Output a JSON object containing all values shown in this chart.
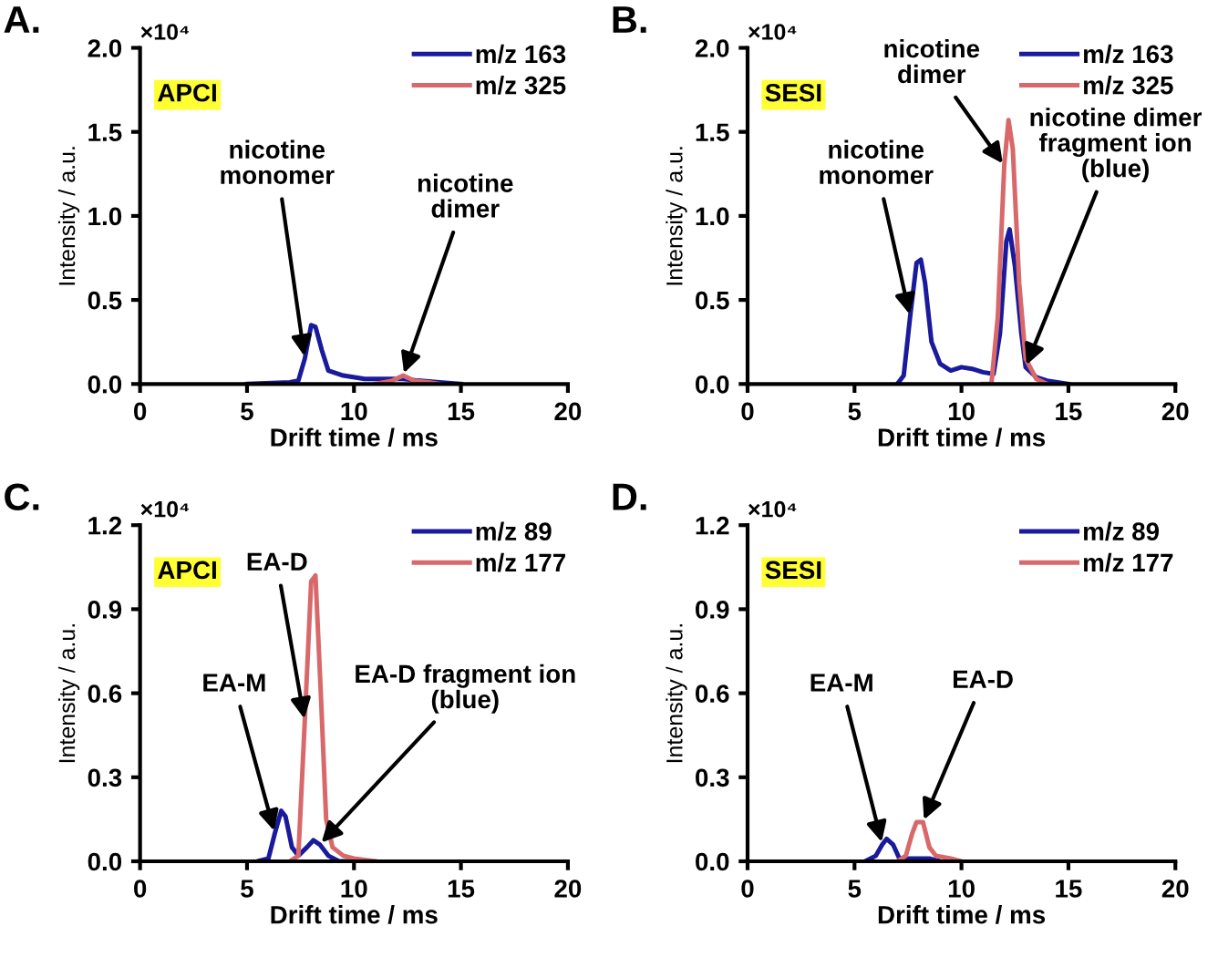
{
  "chart_data": [
    {
      "type": "line",
      "title": "A.",
      "xlabel": "Drift time / ms",
      "ylabel": "Intensity / a.u.",
      "xlim": [
        0,
        20
      ],
      "xticks": [
        0,
        5,
        10,
        15,
        20
      ],
      "ylim": [
        0,
        2.0
      ],
      "yticks": [
        {
          "value": 0,
          "label": "0.0"
        },
        {
          "value": 0.5,
          "label": "0.5"
        },
        {
          "value": 1.0,
          "label": "1.0"
        },
        {
          "value": 1.5,
          "label": "1.5"
        },
        {
          "value": 2.0,
          "label": "2.0"
        }
      ],
      "legend": "top right",
      "grid": false,
      "series": [
        {
          "name": "m/z 163",
          "color": "#1a1a9c",
          "x": [
            5,
            7,
            7.4,
            7.7,
            8.0,
            8.2,
            8.5,
            8.8,
            9.5,
            10.5,
            11.5,
            12.3,
            13,
            14,
            15
          ],
          "values": [
            0,
            0.01,
            0.02,
            0.15,
            0.35,
            0.34,
            0.2,
            0.08,
            0.05,
            0.03,
            0.03,
            0.03,
            0.02,
            0.01,
            0
          ]
        },
        {
          "name": "m/z 325",
          "color": "#d9686a",
          "x": [
            11,
            11.8,
            12.3,
            12.8,
            13.5,
            14
          ],
          "values": [
            0,
            0.02,
            0.05,
            0.02,
            0.01,
            0
          ]
        }
      ],
      "annotations": [
        "×10⁴",
        "APCI",
        {
          "text": "nicotine\nmonomer",
          "x": 7.7,
          "y": 0.15
        },
        {
          "text": "nicotine\ndimer",
          "x": 12.3,
          "y": 0.05
        }
      ]
    },
    {
      "type": "line",
      "title": "B.",
      "xlabel": "Drift time / ms",
      "ylabel": "Intensity / a.u.",
      "xlim": [
        0,
        20
      ],
      "xticks": [
        0,
        5,
        10,
        15,
        20
      ],
      "ylim": [
        0,
        2.0
      ],
      "yticks": [
        {
          "value": 0,
          "label": "0.0"
        },
        {
          "value": 0.5,
          "label": "0.5"
        },
        {
          "value": 1.0,
          "label": "1.0"
        },
        {
          "value": 1.5,
          "label": "1.5"
        },
        {
          "value": 2.0,
          "label": "2.0"
        }
      ],
      "legend": "top right",
      "grid": false,
      "series": [
        {
          "name": "m/z 163",
          "color": "#1a1a9c",
          "x": [
            7,
            7.3,
            7.6,
            7.9,
            8.1,
            8.3,
            8.6,
            9,
            9.5,
            10,
            10.5,
            11,
            11.5,
            11.8,
            12.1,
            12.25,
            12.5,
            12.8,
            13,
            13.5,
            14,
            15
          ],
          "values": [
            0,
            0.05,
            0.4,
            0.72,
            0.74,
            0.6,
            0.25,
            0.12,
            0.08,
            0.1,
            0.09,
            0.07,
            0.06,
            0.3,
            0.85,
            0.92,
            0.7,
            0.3,
            0.1,
            0.04,
            0.02,
            0
          ]
        },
        {
          "name": "m/z 325",
          "color": "#d9686a",
          "x": [
            11,
            11.4,
            11.7,
            12.0,
            12.2,
            12.4,
            12.7,
            13,
            13.5,
            14
          ],
          "values": [
            0,
            0,
            0.4,
            1.3,
            1.57,
            1.4,
            0.6,
            0.15,
            0.03,
            0
          ]
        }
      ],
      "annotations": [
        "×10⁴",
        "SESI",
        {
          "text": "nicotine\nmonomer",
          "x": 7.6,
          "y": 0.4
        },
        {
          "text": "nicotine\ndimer",
          "x": 12.0,
          "y": 1.3
        },
        {
          "text": "nicotine dimer\nfragment ion\n(blue)",
          "x": 13,
          "y": 0.1
        }
      ]
    },
    {
      "type": "line",
      "title": "C.",
      "xlabel": "Drift time / ms",
      "ylabel": "Intensity / a.u.",
      "xlim": [
        0,
        20
      ],
      "xticks": [
        0,
        5,
        10,
        15,
        20
      ],
      "ylim": [
        0,
        1.2
      ],
      "yticks": [
        {
          "value": 0,
          "label": "0.0"
        },
        {
          "value": 0.3,
          "label": "0.3"
        },
        {
          "value": 0.6,
          "label": "0.6"
        },
        {
          "value": 0.9,
          "label": "0.9"
        },
        {
          "value": 1.2,
          "label": "1.2"
        }
      ],
      "legend": "top right",
      "grid": false,
      "series": [
        {
          "name": "m/z 89",
          "color": "#1a1a9c",
          "x": [
            5.5,
            6,
            6.3,
            6.6,
            6.8,
            7.1,
            7.4,
            7.8,
            8.1,
            8.4,
            8.8,
            9.3,
            10
          ],
          "values": [
            0,
            0.01,
            0.1,
            0.18,
            0.16,
            0.05,
            0.02,
            0.05,
            0.075,
            0.06,
            0.02,
            0,
            0
          ]
        },
        {
          "name": "m/z 177",
          "color": "#d9686a",
          "x": [
            7,
            7.4,
            7.7,
            8.0,
            8.2,
            8.45,
            8.7,
            9,
            9.5,
            10,
            11
          ],
          "values": [
            0,
            0.02,
            0.5,
            1.0,
            1.02,
            0.6,
            0.15,
            0.05,
            0.02,
            0.01,
            0
          ]
        }
      ],
      "annotations": [
        "×10⁴",
        "APCI",
        {
          "text": "EA-D",
          "x": 7.7,
          "y": 0.5
        },
        {
          "text": "EA-M",
          "x": 6.3,
          "y": 0.1
        },
        {
          "text": "EA-D fragment ion\n(blue)",
          "x": 8.4,
          "y": 0.06
        }
      ]
    },
    {
      "type": "line",
      "title": "D.",
      "xlabel": "Drift time / ms",
      "ylabel": "Intensity / a.u.",
      "xlim": [
        0,
        20
      ],
      "xticks": [
        0,
        5,
        10,
        15,
        20
      ],
      "ylim": [
        0,
        1.2
      ],
      "yticks": [
        {
          "value": 0,
          "label": "0.0"
        },
        {
          "value": 0.3,
          "label": "0.3"
        },
        {
          "value": 0.6,
          "label": "0.6"
        },
        {
          "value": 0.9,
          "label": "0.9"
        },
        {
          "value": 1.2,
          "label": "1.2"
        }
      ],
      "legend": "top right",
      "grid": false,
      "series": [
        {
          "name": "m/z 89",
          "color": "#1a1a9c",
          "x": [
            5.5,
            6,
            6.3,
            6.5,
            6.8,
            7.1,
            7.5,
            8,
            8.5,
            9
          ],
          "values": [
            0,
            0.02,
            0.06,
            0.08,
            0.06,
            0.01,
            0.01,
            0.01,
            0.01,
            0
          ]
        },
        {
          "name": "m/z 177",
          "color": "#d9686a",
          "x": [
            7,
            7.4,
            7.7,
            7.9,
            8.2,
            8.5,
            8.8,
            9.5,
            10
          ],
          "values": [
            0,
            0.02,
            0.1,
            0.14,
            0.14,
            0.05,
            0.02,
            0.01,
            0
          ]
        }
      ],
      "annotations": [
        "×10⁴",
        "SESI",
        {
          "text": "EA-M",
          "x": 6.3,
          "y": 0.06
        },
        {
          "text": "EA-D",
          "x": 8.2,
          "y": 0.14
        }
      ]
    }
  ]
}
